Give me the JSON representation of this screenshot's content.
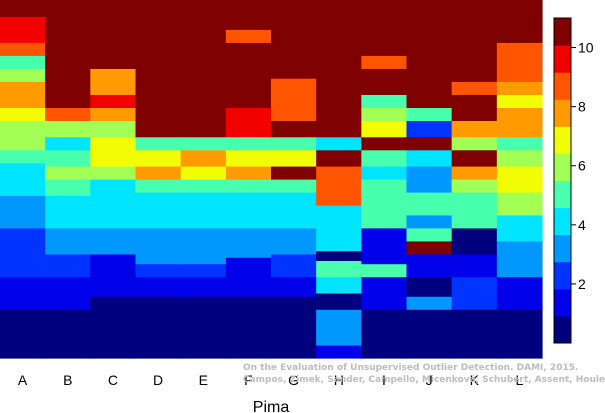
{
  "chart_data": {
    "type": "heatmap",
    "title": "",
    "xlabel": "Pima",
    "ylabel": "",
    "categories": [
      "A",
      "B",
      "C",
      "D",
      "E",
      "F",
      "G",
      "H",
      "I",
      "J",
      "K",
      "L"
    ],
    "value_range": [
      0,
      11
    ],
    "colorbar": {
      "ticks": [
        2,
        4,
        6,
        8,
        10
      ],
      "position": "right"
    },
    "palette": [
      "#00007f",
      "#0000ea",
      "#0033ff",
      "#0098ff",
      "#00e5ff",
      "#48ffae",
      "#a2ff54",
      "#f2fd04",
      "#ff9a00",
      "#ff5400",
      "#f20000",
      "#7f0000"
    ],
    "columns": [
      {
        "name": "A",
        "segments": [
          [
            0,
            0.5
          ],
          [
            1.5,
            1
          ],
          [
            2.5,
            2
          ],
          [
            4,
            3
          ],
          [
            5,
            4
          ],
          [
            6,
            5
          ],
          [
            6.4,
            5.5
          ],
          [
            6.8,
            6
          ],
          [
            7.3,
            7
          ],
          [
            7.7,
            7.5
          ],
          [
            8.1,
            8
          ],
          [
            8.5,
            5.7
          ],
          [
            8.9,
            4.9
          ],
          [
            9.3,
            9
          ],
          [
            9.7,
            10
          ],
          [
            10.5,
            11
          ]
        ]
      },
      {
        "name": "B",
        "segments": [
          [
            0,
            0.5
          ],
          [
            1.5,
            1.5
          ],
          [
            2.5,
            2
          ],
          [
            3.2,
            3
          ],
          [
            4,
            3.8
          ],
          [
            5,
            5.3
          ],
          [
            5.5,
            6
          ],
          [
            5.9,
            5
          ],
          [
            6.4,
            4.5
          ],
          [
            6.8,
            5.8
          ],
          [
            7.3,
            8.4
          ],
          [
            7.7,
            11
          ],
          [
            8.1,
            11
          ]
        ]
      },
      {
        "name": "C",
        "segments": [
          [
            0,
            0.5
          ],
          [
            1.9,
            1.3
          ],
          [
            2.5,
            1.8
          ],
          [
            3.2,
            3.5
          ],
          [
            3.6,
            3.2
          ],
          [
            4,
            4.5
          ],
          [
            5.1,
            4.3
          ],
          [
            5.5,
            5.8
          ],
          [
            5.9,
            7.2
          ],
          [
            6.4,
            6.9
          ],
          [
            6.8,
            5.6
          ],
          [
            7.3,
            8.2
          ],
          [
            7.7,
            9.2
          ],
          [
            8.1,
            7.6
          ],
          [
            8.9,
            10.2
          ],
          [
            9.3,
            11
          ]
        ]
      },
      {
        "name": "D",
        "segments": [
          [
            0,
            0.5
          ],
          [
            1.9,
            1.7
          ],
          [
            2.5,
            2.3
          ],
          [
            2.9,
            3.1
          ],
          [
            3.6,
            3.6
          ],
          [
            4,
            4.2
          ],
          [
            5.1,
            4.6
          ],
          [
            5.5,
            7.6
          ],
          [
            5.9,
            7.1
          ],
          [
            6.4,
            5.1
          ],
          [
            6.8,
            11
          ],
          [
            7.3,
            10.5
          ],
          [
            7.7,
            11
          ],
          [
            9.7,
            10.4
          ],
          [
            10.5,
            11
          ]
        ]
      },
      {
        "name": "E",
        "segments": [
          [
            0,
            0.5
          ],
          [
            1.9,
            1.7
          ],
          [
            2.5,
            2.3
          ],
          [
            2.9,
            3.1
          ],
          [
            3.6,
            3.6
          ],
          [
            4,
            4.2
          ],
          [
            5.1,
            5.1
          ],
          [
            5.5,
            6.5
          ],
          [
            5.9,
            7.6
          ],
          [
            6.4,
            5.1
          ],
          [
            6.8,
            11
          ],
          [
            7.3,
            10.5
          ],
          [
            7.7,
            11
          ],
          [
            9.7,
            10.4
          ],
          [
            10.5,
            11
          ]
        ]
      },
      {
        "name": "F",
        "segments": [
          [
            0,
            0.5
          ],
          [
            1.9,
            1.7
          ],
          [
            2.5,
            1.5
          ],
          [
            3.1,
            2.9
          ],
          [
            3.6,
            3.1
          ],
          [
            4,
            4.2
          ],
          [
            5.1,
            5.1
          ],
          [
            5.5,
            7.5
          ],
          [
            5.9,
            6.8
          ],
          [
            6.4,
            5.1
          ],
          [
            6.8,
            10
          ],
          [
            7.3,
            9.4
          ],
          [
            7.7,
            11
          ],
          [
            9.7,
            8.6
          ],
          [
            10.1,
            11
          ]
        ]
      },
      {
        "name": "G",
        "segments": [
          [
            0,
            0.5
          ],
          [
            1.9,
            1.5
          ],
          [
            2.5,
            1.9
          ],
          [
            3.2,
            2.8
          ],
          [
            4,
            4.2
          ],
          [
            5.1,
            4.7
          ],
          [
            5.5,
            10.4
          ],
          [
            5.9,
            7.1
          ],
          [
            6.4,
            4.8
          ],
          [
            6.8,
            11
          ],
          [
            7.3,
            8.5
          ],
          [
            8.6,
            11
          ]
        ]
      },
      {
        "name": "H",
        "segments": [
          [
            0,
            1.4
          ],
          [
            0.4,
            3.2
          ],
          [
            1.5,
            0.5
          ],
          [
            2,
            4.2
          ],
          [
            2.5,
            4.6
          ],
          [
            3,
            0.5
          ],
          [
            3.3,
            4.5
          ],
          [
            4,
            3.8
          ],
          [
            4.7,
            8.4
          ],
          [
            5.9,
            11
          ],
          [
            6.4,
            4.1
          ],
          [
            6.8,
            11
          ]
        ]
      },
      {
        "name": "I",
        "segments": [
          [
            0,
            0.5
          ],
          [
            1.5,
            1.8
          ],
          [
            2.5,
            4.8
          ],
          [
            2.9,
            1.6
          ],
          [
            3.6,
            1.5
          ],
          [
            4,
            4.7
          ],
          [
            4.4,
            5.2
          ],
          [
            5.1,
            4.6
          ],
          [
            5.5,
            4.1
          ],
          [
            5.9,
            5.3
          ],
          [
            6.4,
            11
          ],
          [
            6.8,
            7.2
          ],
          [
            7.3,
            5.7
          ],
          [
            7.7,
            5.1
          ],
          [
            8.1,
            11
          ],
          [
            8.9,
            8.9
          ],
          [
            9.3,
            10.4
          ],
          [
            9.7,
            11
          ],
          [
            10.5,
            10.3
          ],
          [
            10.9,
            11
          ]
        ]
      },
      {
        "name": "J",
        "segments": [
          [
            0,
            0.5
          ],
          [
            1.5,
            3.2
          ],
          [
            1.9,
            0.5
          ],
          [
            2.5,
            1.5
          ],
          [
            3.2,
            11
          ],
          [
            3.6,
            4.7
          ],
          [
            4,
            3.2
          ],
          [
            4.4,
            4.8
          ],
          [
            5.1,
            3.4
          ],
          [
            5.9,
            4.5
          ],
          [
            6.4,
            11
          ],
          [
            6.8,
            2.6
          ],
          [
            7.3,
            4.7
          ],
          [
            7.7,
            11
          ]
        ]
      },
      {
        "name": "K",
        "segments": [
          [
            0,
            0.5
          ],
          [
            1.5,
            2.5
          ],
          [
            2.5,
            1.5
          ],
          [
            3.2,
            0.5
          ],
          [
            4,
            4.7
          ],
          [
            5.1,
            5.7
          ],
          [
            5.5,
            8.1
          ],
          [
            5.9,
            11
          ],
          [
            6.4,
            6.3
          ],
          [
            6.8,
            8.2
          ],
          [
            7.3,
            11
          ],
          [
            8.1,
            8.8
          ],
          [
            8.5,
            11
          ]
        ]
      },
      {
        "name": "L",
        "segments": [
          [
            0,
            0.5
          ],
          [
            1.5,
            1.5
          ],
          [
            2.5,
            3.5
          ],
          [
            3.6,
            4.3
          ],
          [
            4.4,
            5.6
          ],
          [
            5.1,
            6.6
          ],
          [
            5.9,
            6.3
          ],
          [
            6.4,
            5.3
          ],
          [
            6.8,
            8.2
          ],
          [
            7.7,
            6.5
          ],
          [
            8.1,
            7.5
          ],
          [
            8.5,
            8.7
          ],
          [
            8.9,
            8.6
          ],
          [
            9.7,
            11
          ],
          [
            10.1,
            10.5
          ],
          [
            10.5,
            11
          ]
        ]
      }
    ]
  },
  "watermark": {
    "line1": "On the Evaluation of Unsupervised Outlier Detection. DAMI, 2015.",
    "line2": "Campos, Zimek, Sander, Campello, Micenková, Schubert, Assent, Houle"
  }
}
